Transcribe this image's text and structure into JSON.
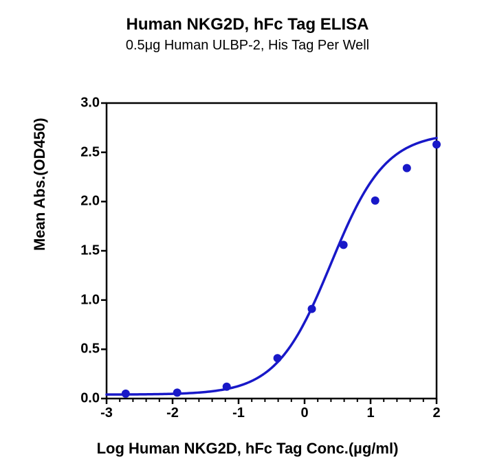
{
  "chart": {
    "type": "scatter-with-fit",
    "title": "Human NKG2D, hFc Tag ELISA",
    "subtitle": "0.5μg Human ULBP-2, His Tag Per Well",
    "title_fontsize": 24,
    "subtitle_fontsize": 20,
    "xlabel": "Log Human NKG2D, hFc Tag Conc.(µg/ml)",
    "ylabel": "Mean Abs.(OD450)",
    "label_fontsize": 22,
    "tick_fontsize": 20,
    "background_color": "#ffffff",
    "frame_color": "#000000",
    "frame_width": 2.5,
    "xlim": [
      -3,
      2
    ],
    "ylim": [
      0,
      3.0
    ],
    "xticks": [
      -3,
      -2,
      -1,
      0,
      1,
      2
    ],
    "yticks": [
      0.0,
      0.5,
      1.0,
      1.5,
      2.0,
      2.5,
      3.0
    ],
    "ytick_labels": [
      "0.0",
      "0.5",
      "1.0",
      "1.5",
      "2.0",
      "2.5",
      "3.0"
    ],
    "xtick_labels": [
      "-3",
      "-2",
      "-1",
      "0",
      "1",
      "2"
    ],
    "tick_length_major": 8,
    "tick_length_minor": 5,
    "x_minor_per_major": 4,
    "series": {
      "marker_color": "#1818c8",
      "line_color": "#1818c8",
      "marker_size": 6,
      "line_width": 3.5,
      "points_x": [
        -2.71,
        -1.93,
        -1.18,
        -0.41,
        0.11,
        0.59,
        1.07,
        1.55,
        2.0
      ],
      "points_y": [
        0.05,
        0.06,
        0.12,
        0.41,
        0.91,
        1.56,
        2.01,
        2.34,
        2.58
      ],
      "fit": {
        "type": "4pl",
        "bottom": 0.04,
        "top": 2.7,
        "ec50_logx": 0.4,
        "hillslope": 1.05
      }
    }
  }
}
